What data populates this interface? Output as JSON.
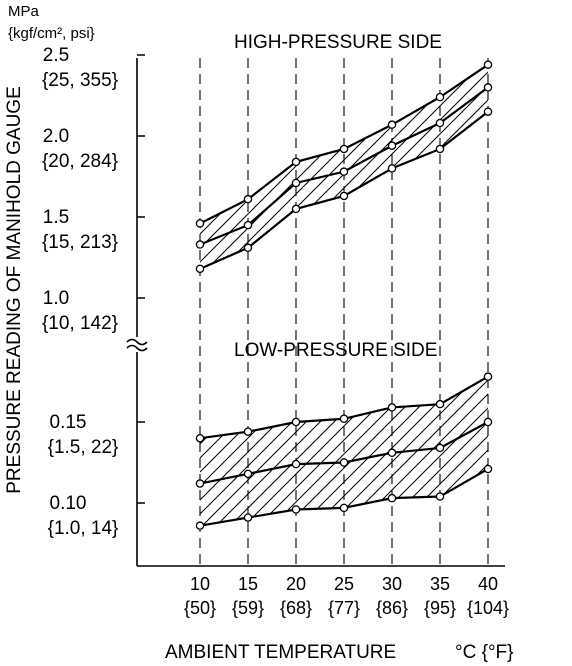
{
  "chart_data": {
    "type": "line",
    "title": "",
    "ylabel": "PRESSURE READING OF MANIHOLD GAUGE",
    "xlabel": "AMBIENT TEMPERATURE",
    "xunit": "°C {°F}",
    "y_unit_line1": "MPa",
    "y_unit_line2": "{kgf/cm², psi}",
    "x": [
      10,
      15,
      20,
      25,
      30,
      35,
      40
    ],
    "x_tick_labels": [
      "10",
      "15",
      "20",
      "25",
      "30",
      "35",
      "40"
    ],
    "x_tick_labels_f": [
      "{50}",
      "{59}",
      "{68}",
      "{77}",
      "{86}",
      "{95}",
      "{104}"
    ],
    "grid_vertical_dashed": true,
    "axis_break": true,
    "high_pressure": {
      "label": "HIGH-PRESSURE SIDE",
      "yticks": [
        {
          "mpa": "2.5",
          "alt": "{25, 355}",
          "v": 2.5
        },
        {
          "mpa": "2.0",
          "alt": "{20, 284}",
          "v": 2.0
        },
        {
          "mpa": "1.5",
          "alt": "{15, 213}",
          "v": 1.5
        },
        {
          "mpa": "1.0",
          "alt": "{10, 142}",
          "v": 1.0
        }
      ],
      "series": [
        {
          "values": [
            1.46,
            1.61,
            1.84,
            1.92,
            2.07,
            2.24,
            2.44
          ]
        },
        {
          "values": [
            1.33,
            1.45,
            1.71,
            1.78,
            1.94,
            2.08,
            2.3
          ]
        },
        {
          "values": [
            1.18,
            1.31,
            1.55,
            1.63,
            1.8,
            1.92,
            2.15
          ]
        }
      ]
    },
    "low_pressure": {
      "label": "LOW-PRESSURE SIDE",
      "yticks": [
        {
          "mpa": "0.15",
          "alt": "{1.5, 22}",
          "v": 0.15
        },
        {
          "mpa": "0.10",
          "alt": "{1.0, 14}",
          "v": 0.1
        }
      ],
      "series": [
        {
          "values": [
            0.14,
            0.144,
            0.15,
            0.152,
            0.159,
            0.161,
            0.178
          ]
        },
        {
          "values": [
            0.112,
            0.118,
            0.124,
            0.125,
            0.131,
            0.134,
            0.15
          ]
        },
        {
          "values": [
            0.086,
            0.091,
            0.096,
            0.097,
            0.103,
            0.104,
            0.121
          ]
        }
      ]
    }
  }
}
